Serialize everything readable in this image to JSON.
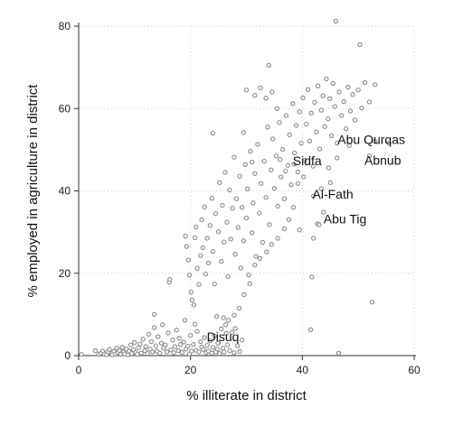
{
  "chart_data": {
    "type": "scatter",
    "xlabel": "% illiterate in district",
    "ylabel": "% employed in agriculture in district",
    "xlim": [
      0,
      60
    ],
    "ylim": [
      0,
      80
    ],
    "xticks": [
      0,
      20,
      40,
      60
    ],
    "yticks": [
      0,
      20,
      40,
      60,
      80
    ],
    "grid": true,
    "legend": "none",
    "marker_color": "#8a8a8a",
    "annotations": [
      {
        "text": "Abu Qurqas",
        "x": 46.3,
        "y": 52.5
      },
      {
        "text": "Abnub",
        "x": 51.1,
        "y": 47.5
      },
      {
        "text": "Sidfa",
        "x": 38.3,
        "y": 47.3
      },
      {
        "text": "Al-Fath",
        "x": 41.8,
        "y": 39.2
      },
      {
        "text": "Abu Tig",
        "x": 43.8,
        "y": 33.2
      },
      {
        "text": "Disuq",
        "x": 22.9,
        "y": 4.6
      }
    ],
    "points": [
      [
        0.5,
        0.3
      ],
      [
        3.0,
        1.2
      ],
      [
        3.6,
        0.3
      ],
      [
        4.0,
        0.6
      ],
      [
        4.3,
        1.1
      ],
      [
        4.6,
        0.4
      ],
      [
        5.0,
        0.2
      ],
      [
        5.2,
        0.9
      ],
      [
        5.5,
        1.5
      ],
      [
        5.8,
        0.5
      ],
      [
        6.0,
        0.2
      ],
      [
        6.3,
        1.0
      ],
      [
        6.6,
        0.4
      ],
      [
        6.8,
        1.8
      ],
      [
        7.0,
        0.7
      ],
      [
        7.3,
        1.2
      ],
      [
        7.5,
        0.3
      ],
      [
        7.8,
        2.0
      ],
      [
        8.0,
        0.9
      ],
      [
        8.2,
        0.4
      ],
      [
        8.5,
        1.6
      ],
      [
        8.8,
        0.2
      ],
      [
        9.0,
        1.1
      ],
      [
        9.3,
        2.6
      ],
      [
        9.5,
        0.5
      ],
      [
        9.8,
        1.4
      ],
      [
        10.0,
        3.2
      ],
      [
        10.2,
        0.8
      ],
      [
        10.5,
        0.3
      ],
      [
        10.7,
        1.9
      ],
      [
        11.0,
        2.8
      ],
      [
        11.2,
        0.6
      ],
      [
        11.5,
        4.0
      ],
      [
        11.8,
        1.2
      ],
      [
        12.0,
        2.2
      ],
      [
        12.3,
        0.5
      ],
      [
        12.5,
        5.2
      ],
      [
        12.8,
        1.6
      ],
      [
        13.0,
        3.4
      ],
      [
        13.2,
        0.9
      ],
      [
        13.5,
        6.8
      ],
      [
        13.5,
        10.0
      ],
      [
        13.8,
        2.4
      ],
      [
        14.0,
        1.1
      ],
      [
        14.2,
        4.6
      ],
      [
        14.5,
        0.6
      ],
      [
        14.8,
        3.0
      ],
      [
        15.0,
        7.5
      ],
      [
        15.2,
        1.8
      ],
      [
        15.5,
        2.6
      ],
      [
        15.8,
        0.9
      ],
      [
        16.0,
        5.5
      ],
      [
        16.2,
        17.8
      ],
      [
        16.3,
        18.5
      ],
      [
        16.5,
        1.4
      ],
      [
        16.8,
        3.8
      ],
      [
        17.0,
        0.7
      ],
      [
        17.2,
        2.2
      ],
      [
        17.5,
        6.2
      ],
      [
        17.8,
        1.2
      ],
      [
        18.0,
        4.2
      ],
      [
        18.2,
        2.7
      ],
      [
        18.5,
        0.8
      ],
      [
        18.8,
        3.3
      ],
      [
        19.0,
        8.6
      ],
      [
        19.2,
        1.6
      ],
      [
        19.5,
        2.3
      ],
      [
        19.8,
        0.4
      ],
      [
        20.0,
        4.9
      ],
      [
        20.2,
        1.1
      ],
      [
        20.5,
        2.7
      ],
      [
        20.8,
        7.6
      ],
      [
        21.0,
        1.3
      ],
      [
        21.2,
        5.9
      ],
      [
        21.5,
        0.9
      ],
      [
        21.8,
        3.4
      ],
      [
        22.0,
        2.1
      ],
      [
        22.3,
        1.5
      ],
      [
        22.5,
        4.4
      ],
      [
        22.8,
        0.7
      ],
      [
        23.0,
        2.5
      ],
      [
        23.2,
        1.1
      ],
      [
        23.5,
        3.6
      ],
      [
        23.8,
        0.6
      ],
      [
        24.0,
        2.0
      ],
      [
        24.3,
        4.8
      ],
      [
        24.5,
        0.9
      ],
      [
        24.8,
        1.6
      ],
      [
        25.0,
        3.1
      ],
      [
        25.2,
        0.5
      ],
      [
        25.5,
        6.5
      ],
      [
        25.8,
        1.8
      ],
      [
        26.0,
        0.9
      ],
      [
        26.3,
        7.5
      ],
      [
        26.6,
        2.6
      ],
      [
        27.0,
        1.2
      ],
      [
        27.4,
        5.6
      ],
      [
        27.8,
        0.7
      ],
      [
        28.0,
        6.6
      ],
      [
        28.4,
        2.4
      ],
      [
        28.8,
        1.0
      ],
      [
        29.2,
        3.8
      ],
      [
        19.1,
        29.0
      ],
      [
        19.3,
        26.5
      ],
      [
        19.6,
        23.2
      ],
      [
        19.8,
        19.5
      ],
      [
        20.1,
        15.4
      ],
      [
        20.3,
        13.5
      ],
      [
        20.6,
        12.3
      ],
      [
        20.8,
        28.6
      ],
      [
        21.0,
        31.2
      ],
      [
        21.2,
        21.2
      ],
      [
        21.5,
        17.3
      ],
      [
        21.8,
        24.3
      ],
      [
        22.0,
        33.0
      ],
      [
        22.2,
        26.2
      ],
      [
        22.5,
        36.1
      ],
      [
        22.7,
        19.8
      ],
      [
        23.0,
        28.5
      ],
      [
        23.2,
        22.5
      ],
      [
        23.5,
        31.6
      ],
      [
        23.8,
        38.2
      ],
      [
        24.0,
        25.3
      ],
      [
        24.3,
        17.4
      ],
      [
        24.5,
        34.5
      ],
      [
        24.7,
        9.5
      ],
      [
        25.0,
        30.1
      ],
      [
        25.2,
        42.0
      ],
      [
        25.5,
        22.9
      ],
      [
        25.7,
        36.5
      ],
      [
        26.0,
        27.6
      ],
      [
        26.2,
        44.5
      ],
      [
        26.5,
        32.4
      ],
      [
        26.7,
        19.2
      ],
      [
        27.0,
        40.2
      ],
      [
        27.2,
        28.3
      ],
      [
        27.5,
        35.8
      ],
      [
        27.8,
        48.2
      ],
      [
        28.0,
        24.6
      ],
      [
        28.2,
        38.1
      ],
      [
        28.5,
        31.1
      ],
      [
        28.8,
        43.6
      ],
      [
        29.0,
        21.3
      ],
      [
        29.2,
        36.0
      ],
      [
        29.5,
        27.9
      ],
      [
        29.8,
        46.4
      ],
      [
        30.0,
        33.4
      ],
      [
        30.2,
        40.5
      ],
      [
        30.4,
        19.6
      ],
      [
        30.7,
        49.6
      ],
      [
        31.0,
        29.8
      ],
      [
        31.2,
        37.1
      ],
      [
        31.5,
        44.2
      ],
      [
        31.7,
        24.1
      ],
      [
        32.0,
        51.3
      ],
      [
        32.3,
        34.6
      ],
      [
        32.6,
        41.8
      ],
      [
        32.9,
        27.5
      ],
      [
        33.2,
        47.2
      ],
      [
        33.5,
        38.4
      ],
      [
        33.8,
        55.5
      ],
      [
        34.1,
        31.8
      ],
      [
        34.4,
        45.1
      ],
      [
        34.7,
        52.6
      ],
      [
        35.0,
        40.6
      ],
      [
        35.3,
        48.5
      ],
      [
        35.6,
        36.3
      ],
      [
        35.9,
        56.6
      ],
      [
        36.2,
        43.4
      ],
      [
        36.5,
        50.1
      ],
      [
        36.8,
        38.1
      ],
      [
        37.1,
        58.3
      ],
      [
        37.4,
        46.2
      ],
      [
        37.7,
        53.6
      ],
      [
        38.0,
        41.5
      ],
      [
        38.3,
        61.2
      ],
      [
        38.6,
        49.2
      ],
      [
        38.9,
        55.9
      ],
      [
        39.2,
        44.6
      ],
      [
        39.5,
        59.2
      ],
      [
        39.8,
        51.6
      ],
      [
        40.1,
        62.6
      ],
      [
        40.4,
        47.4
      ],
      [
        40.7,
        56.2
      ],
      [
        41.0,
        64.6
      ],
      [
        41.3,
        52.1
      ],
      [
        41.6,
        58.9
      ],
      [
        41.9,
        46.0
      ],
      [
        42.2,
        61.5
      ],
      [
        42.5,
        54.3
      ],
      [
        42.8,
        65.5
      ],
      [
        43.1,
        50.2
      ],
      [
        43.4,
        59.6
      ],
      [
        43.7,
        63.1
      ],
      [
        44.0,
        55.6
      ],
      [
        44.3,
        67.2
      ],
      [
        44.6,
        57.5
      ],
      [
        44.9,
        62.4
      ],
      [
        45.2,
        53.4
      ],
      [
        45.5,
        66.1
      ],
      [
        45.8,
        60.5
      ],
      [
        46.2,
        51.6
      ],
      [
        46.6,
        64.0
      ],
      [
        47.0,
        58.3
      ],
      [
        47.4,
        61.7
      ],
      [
        47.8,
        55.1
      ],
      [
        48.2,
        65.2
      ],
      [
        48.6,
        59.4
      ],
      [
        49.0,
        63.4
      ],
      [
        49.4,
        57.2
      ],
      [
        50.0,
        64.5
      ],
      [
        50.6,
        60.1
      ],
      [
        51.2,
        66.3
      ],
      [
        52.0,
        61.6
      ],
      [
        53.0,
        65.8
      ],
      [
        55.5,
        51.6
      ],
      [
        30.0,
        64.5
      ],
      [
        31.5,
        63.2
      ],
      [
        32.5,
        65.0
      ],
      [
        33.5,
        62.5
      ],
      [
        34.0,
        70.5
      ],
      [
        34.6,
        64.0
      ],
      [
        35.5,
        60.0
      ],
      [
        24.0,
        54.0
      ],
      [
        29.5,
        54.2
      ],
      [
        31.0,
        47.0
      ],
      [
        41.5,
        6.3
      ],
      [
        41.7,
        19.1
      ],
      [
        46.5,
        0.6
      ],
      [
        52.5,
        13.0
      ],
      [
        52.0,
        48.5
      ],
      [
        46.0,
        81.2
      ],
      [
        50.3,
        75.5
      ],
      [
        53.0,
        52.0
      ],
      [
        48.4,
        51.0
      ],
      [
        46.2,
        48.0
      ],
      [
        44.7,
        45.6
      ],
      [
        43.4,
        40.5
      ],
      [
        42.0,
        38.8
      ],
      [
        43.8,
        34.8
      ],
      [
        42.7,
        32.0
      ],
      [
        42.0,
        28.5
      ],
      [
        43.0,
        31.8
      ],
      [
        45.0,
        42.0
      ],
      [
        38.5,
        46.5
      ],
      [
        36.0,
        47.6
      ],
      [
        37.0,
        44.8
      ],
      [
        39.2,
        41.8
      ],
      [
        40.2,
        43.4
      ],
      [
        38.4,
        36.0
      ],
      [
        37.6,
        33.0
      ],
      [
        39.5,
        30.5
      ],
      [
        36.8,
        30.8
      ],
      [
        35.6,
        28.5
      ],
      [
        34.5,
        27.0
      ],
      [
        33.6,
        25.2
      ],
      [
        32.4,
        23.6
      ],
      [
        31.5,
        22.0
      ],
      [
        30.6,
        17.5
      ],
      [
        29.6,
        14.8
      ],
      [
        28.7,
        11.5
      ],
      [
        27.8,
        9.8
      ],
      [
        26.8,
        8.6
      ],
      [
        25.9,
        9.2
      ],
      [
        26.4,
        5.4
      ],
      [
        24.9,
        3.0
      ]
    ]
  }
}
